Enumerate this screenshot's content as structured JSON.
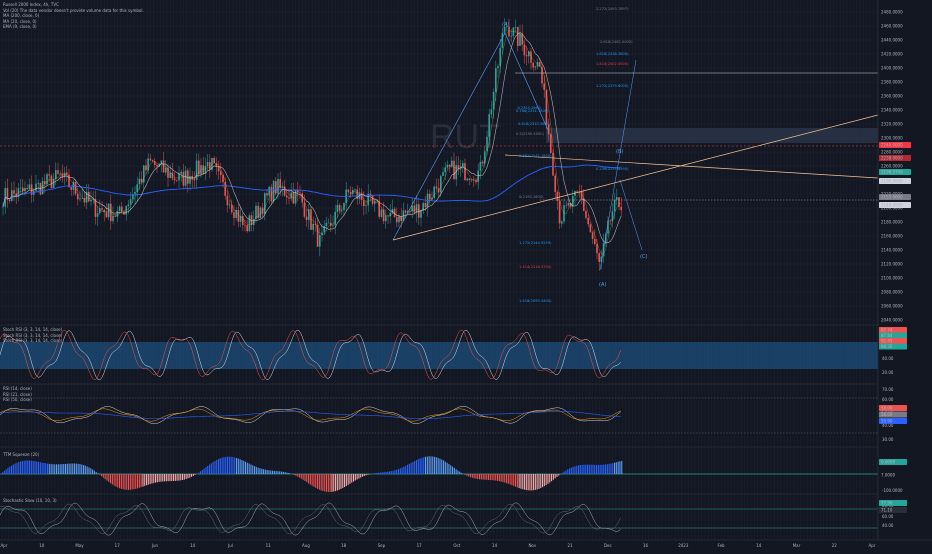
{
  "legend": {
    "title": "Russell 2000 Index, 4h, TVC",
    "rows": [
      "Vol (20)  The data vendor doesn't provide volume data for this symbol.",
      "MA (200, close, 0)",
      "MA (20, close, 0)",
      "EMA (9, close, 0)"
    ]
  },
  "watermark": "RUT",
  "colors": {
    "bg": "#131722",
    "up": "#26a69a",
    "down": "#ef5350",
    "ma200": "#2962ff",
    "ma20": "#d1d4dc",
    "ema9": "#e0e0e0",
    "trend": "#f7c49a",
    "fib_blue": "#2196f3",
    "fib_red": "#f23645",
    "band": "#1e4d7b"
  },
  "price_axis": [
    "2480.0000",
    "2460.0000",
    "2440.0000",
    "2420.0000",
    "2400.0000",
    "2380.0000",
    "2360.0000",
    "2340.0000",
    "2320.0000",
    "2300.0000",
    "2280.0000",
    "2260.0000",
    "2240.0000",
    "2220.0000",
    "2200.0000",
    "2180.0000",
    "2160.0000",
    "2140.0000",
    "2120.0000",
    "2100.0000",
    "2080.0000",
    "2060.0000",
    "2040.0000"
  ],
  "price_badges": {
    "red_top": "2240.0000",
    "red_mid": "2238.0000",
    "last": "2198.5700",
    "gray1": "2190.0000",
    "gray2": "2155.0000",
    "gray3": "2148.0000"
  },
  "time_axis": [
    "Apr",
    "10",
    "May",
    "17",
    "Jun",
    "14",
    "Jul",
    "11",
    "Aug",
    "18",
    "Sep",
    "17",
    "Oct",
    "14",
    "Nov",
    "21",
    "Dec",
    "16",
    "2023",
    "Feb",
    "14",
    "Mar",
    "22",
    "Apr"
  ],
  "fib_levels": [
    {
      "label": "2.272(2493.7897)",
      "color": "#787b86"
    },
    {
      "label": "2.618(2462.0000)",
      "color": "#787b86"
    },
    {
      "label": "1.618(2438.3800)",
      "color": "#2196f3"
    },
    {
      "label": "1.414(2402.4500)",
      "color": "#f23645"
    },
    {
      "label": "1.272(2379.6000)",
      "color": "#2196f3"
    },
    {
      "label": "1(2353.2960)",
      "color": "#2196f3"
    },
    {
      "label": "0.786(2331.7800)",
      "color": "#2196f3"
    },
    {
      "label": "0.618(2310.5800)",
      "color": "#2196f3"
    },
    {
      "label": "0.5(2290.4000)",
      "color": "#787b86"
    },
    {
      "label": "0.382(2271.1800)",
      "color": "#2196f3"
    },
    {
      "label": "0.236(2239.4290)",
      "color": "#2196f3"
    },
    {
      "label": "0(2193.1600)",
      "color": "#787b86"
    },
    {
      "label": "1.272(2144.9259)",
      "color": "#2196f3"
    },
    {
      "label": "1.414(2116.3700)",
      "color": "#f23645"
    },
    {
      "label": "1.618(2095.4400)",
      "color": "#2196f3"
    }
  ],
  "waves": [
    "(A)",
    "(B)",
    "(C)",
    "(A)"
  ],
  "panels": {
    "stoch": {
      "lines": [
        "Stoch RSI (3, 3, 14, 14, close)",
        "Stoch RSI (3, 3, 14, 14, close)",
        "Stoch RSI (3, 3, 14, 14, close)"
      ],
      "axis": [
        "80.00",
        "60.00",
        "40.00",
        "20.00"
      ],
      "badges": [
        "87.74",
        "87.84",
        "92.43",
        "88.26"
      ]
    },
    "rsi": {
      "lines": [
        "RSI (14, close)",
        "RSI (21, close)",
        "RSI (50, close)"
      ],
      "axis": [
        "70.00",
        "60.00",
        "50.00",
        "40.00",
        "30.00"
      ],
      "badges": [
        "58.00",
        "56.00",
        "55.90"
      ]
    },
    "ttm": {
      "title": "TTM Squeeze (20)",
      "axis": [
        "0.0000",
        "-100.0000"
      ],
      "badges": [
        "0.0000",
        "7.0000"
      ]
    },
    "stoch2": {
      "title": "Stochastic Slow (10, 10, 3)",
      "axis": [
        "80.00",
        "60.00",
        "40.00"
      ],
      "badges": [
        "77.96",
        "71.10"
      ]
    }
  },
  "chart_data": {
    "type": "candlestick",
    "title": "Russell 2000 Index, 4h, TVC",
    "x_range": [
      "Apr 2022",
      "Apr 2023"
    ],
    "ylim": [
      2040,
      2490
    ],
    "ylabel": "",
    "series": [
      {
        "name": "MA (200, close, 0)",
        "color": "#2962ff"
      },
      {
        "name": "MA (20, close, 0)",
        "color": "#d1d4dc"
      },
      {
        "name": "EMA (9, close, 0)",
        "color": "#e0e0e0"
      }
    ],
    "last_price": 2198.57,
    "swing_points": [
      {
        "label": "(A)",
        "price": 2465
      },
      {
        "label": "(B)",
        "price": 2235
      },
      {
        "label": "(C)",
        "price": 2140
      },
      {
        "label": "(A)",
        "price": 2100
      }
    ]
  }
}
